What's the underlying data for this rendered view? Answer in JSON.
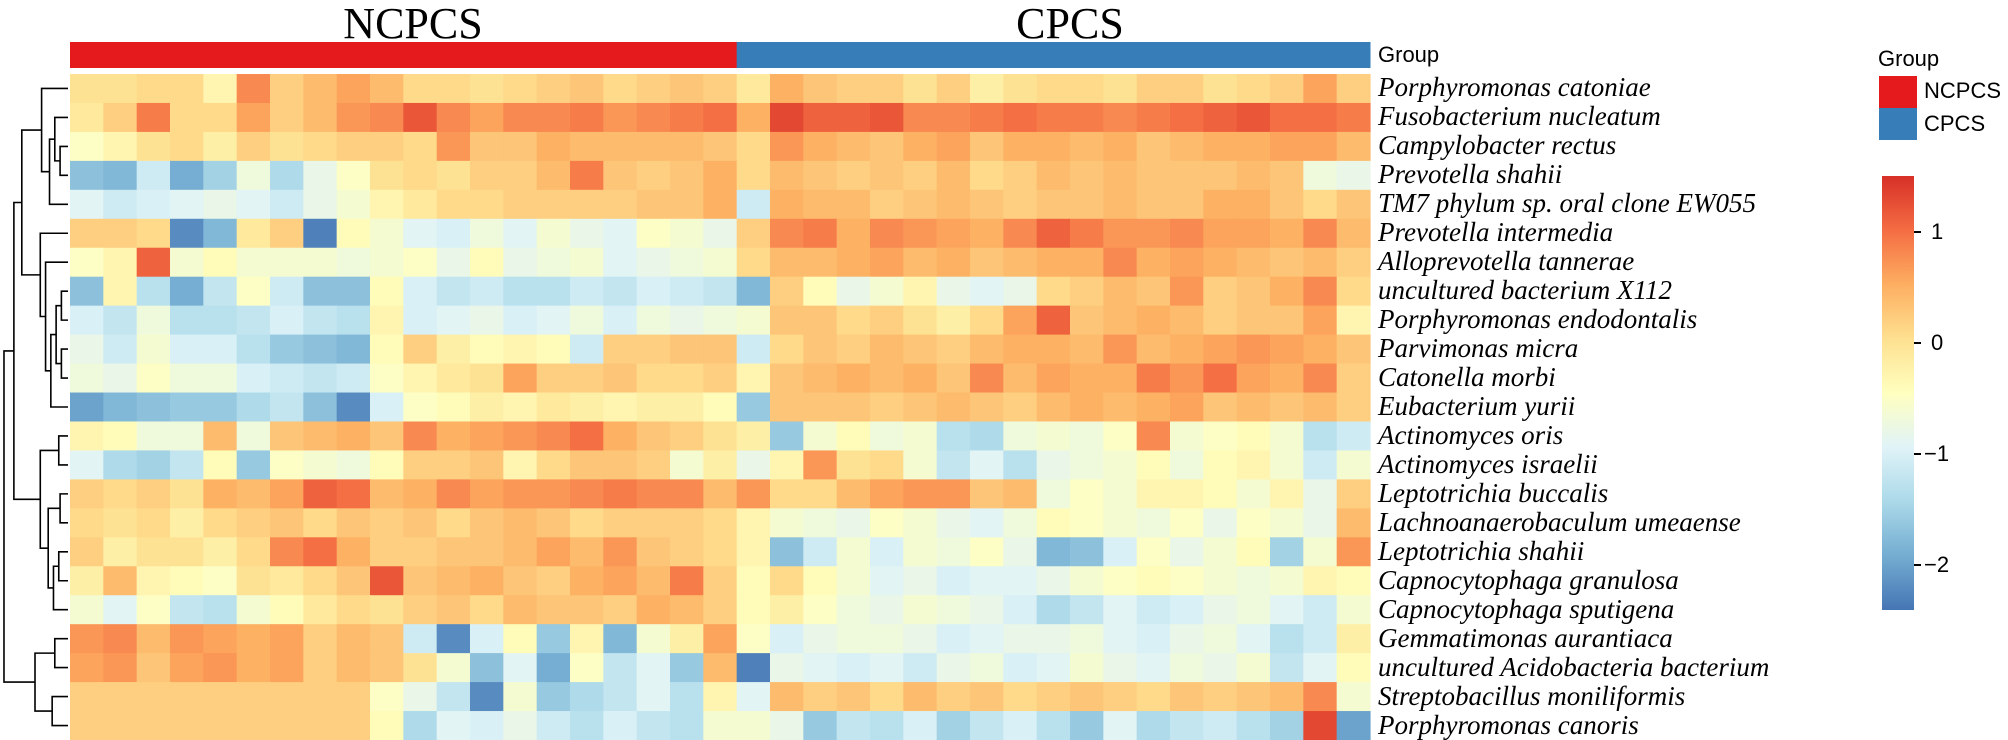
{
  "chart_data": {
    "type": "heatmap",
    "column_groups": [
      {
        "name": "NCPCS",
        "count": 20,
        "color": "#e41a1c"
      },
      {
        "name": "CPCS",
        "count": 19,
        "color": "#377eb8"
      }
    ],
    "group_annotation_label": "Group",
    "rows": [
      "Porphyromonas catoniae",
      "Fusobacterium nucleatum",
      "Campylobacter rectus",
      "Prevotella shahii",
      "TM7 phylum sp. oral clone EW055",
      "Prevotella intermedia",
      "Alloprevotella tannerae",
      "uncultured bacterium X112",
      "Porphyromonas endodontalis",
      "Parvimonas micra",
      "Catonella morbi",
      "Eubacterium yurii",
      "Actinomyces oris",
      "Actinomyces israelii",
      "Leptotrichia buccalis",
      "Lachnoanaerobaculum umeaense",
      "Leptotrichia shahii",
      "Capnocytophaga granulosa",
      "Capnocytophaga sputigena",
      "Gemmatimonas aurantiaca",
      "uncultured Acidobacteria bacterium",
      "Streptobacillus moniliformis",
      "Porphyromonas canoris"
    ],
    "values": [
      [
        0.0,
        0.0,
        0.1,
        0.1,
        -0.3,
        0.8,
        0.2,
        0.4,
        0.6,
        0.4,
        0.1,
        0.1,
        0.0,
        0.1,
        0.2,
        0.3,
        0.1,
        0.2,
        0.3,
        0.2,
        -0.1,
        0.5,
        0.3,
        0.2,
        0.2,
        0.0,
        0.2,
        -0.2,
        0.0,
        0.1,
        0.1,
        0.0,
        0.2,
        0.2,
        0.0,
        0.1,
        0.2,
        0.6,
        0.2
      ],
      [
        -0.1,
        0.2,
        0.9,
        0.1,
        0.1,
        0.6,
        0.2,
        0.4,
        0.7,
        0.8,
        1.2,
        0.8,
        0.6,
        0.8,
        0.8,
        0.9,
        0.7,
        0.8,
        0.9,
        1.0,
        0.5,
        1.3,
        1.1,
        1.1,
        1.2,
        0.8,
        0.8,
        0.9,
        1.0,
        0.9,
        0.9,
        0.8,
        0.9,
        1.0,
        1.1,
        1.2,
        1.0,
        1.0,
        0.9
      ],
      [
        -0.5,
        -0.3,
        0.0,
        0.1,
        -0.2,
        0.2,
        0.0,
        0.1,
        0.2,
        0.2,
        0.1,
        0.7,
        0.3,
        0.3,
        0.5,
        0.4,
        0.4,
        0.4,
        0.4,
        0.3,
        0.1,
        0.7,
        0.5,
        0.4,
        0.3,
        0.5,
        0.6,
        0.3,
        0.5,
        0.5,
        0.4,
        0.5,
        0.3,
        0.4,
        0.5,
        0.5,
        0.6,
        0.6,
        0.4
      ],
      [
        -1.7,
        -1.8,
        -1.1,
        -1.9,
        -1.5,
        -0.7,
        -1.4,
        -0.8,
        -0.5,
        0.0,
        0.1,
        0.0,
        0.2,
        0.2,
        0.4,
        0.9,
        0.3,
        0.2,
        0.3,
        0.5,
        0.1,
        0.4,
        0.3,
        0.2,
        0.3,
        0.2,
        0.4,
        0.1,
        0.2,
        0.4,
        0.3,
        0.4,
        0.3,
        0.3,
        0.3,
        0.4,
        0.3,
        -0.7,
        -0.8
      ],
      [
        -0.9,
        -1.1,
        -1.0,
        -0.9,
        -0.8,
        -0.9,
        -1.1,
        -0.8,
        -0.6,
        -0.3,
        -0.1,
        0.1,
        0.1,
        0.2,
        0.2,
        0.2,
        0.2,
        0.3,
        0.3,
        0.5,
        -1.1,
        0.5,
        0.4,
        0.4,
        0.2,
        0.3,
        0.4,
        0.3,
        0.2,
        0.3,
        0.3,
        0.4,
        0.3,
        0.3,
        0.5,
        0.5,
        0.3,
        0.1,
        0.3
      ],
      [
        0.2,
        0.2,
        0.1,
        -2.2,
        -1.8,
        -0.1,
        0.2,
        -2.3,
        -0.4,
        -0.6,
        -0.9,
        -1.0,
        -0.7,
        -0.9,
        -0.6,
        -0.8,
        -0.9,
        -0.5,
        -0.6,
        -0.8,
        0.2,
        0.8,
        0.9,
        0.5,
        0.8,
        0.7,
        0.6,
        0.5,
        0.8,
        1.1,
        0.9,
        0.7,
        0.7,
        0.8,
        0.6,
        0.6,
        0.5,
        0.8,
        0.4
      ],
      [
        -0.5,
        -0.3,
        1.1,
        -0.6,
        -0.4,
        -0.6,
        -0.6,
        -0.6,
        -0.7,
        -0.6,
        -0.5,
        -0.8,
        -0.4,
        -0.8,
        -0.7,
        -0.6,
        -0.9,
        -0.8,
        -0.7,
        -0.6,
        0.1,
        0.4,
        0.4,
        0.5,
        0.6,
        0.4,
        0.5,
        0.3,
        0.4,
        0.5,
        0.5,
        0.8,
        0.5,
        0.6,
        0.5,
        0.4,
        0.3,
        0.4,
        0.2
      ],
      [
        -1.7,
        -0.3,
        -1.3,
        -1.9,
        -1.2,
        -0.5,
        -1.1,
        -1.7,
        -1.7,
        -0.4,
        -1.0,
        -1.2,
        -1.1,
        -1.3,
        -1.3,
        -1.1,
        -1.2,
        -1.0,
        -1.1,
        -1.2,
        -1.8,
        0.2,
        -0.4,
        -0.8,
        -0.6,
        -0.3,
        -0.8,
        -0.9,
        -0.8,
        0.1,
        0.2,
        0.4,
        0.3,
        0.7,
        0.2,
        0.3,
        0.5,
        0.8,
        0.1
      ],
      [
        -1.0,
        -1.2,
        -0.7,
        -1.3,
        -1.3,
        -1.2,
        -1.0,
        -1.2,
        -1.3,
        -0.3,
        -1.0,
        -0.9,
        -0.8,
        -1.0,
        -0.9,
        -0.7,
        -1.0,
        -0.7,
        -0.8,
        -0.7,
        -0.6,
        0.3,
        0.3,
        0.1,
        0.2,
        0.0,
        -0.2,
        0.1,
        0.6,
        1.1,
        0.3,
        0.4,
        0.5,
        0.4,
        0.2,
        0.3,
        0.3,
        0.6,
        -0.3
      ],
      [
        -0.8,
        -1.1,
        -0.6,
        -1.0,
        -1.0,
        -1.3,
        -1.6,
        -1.7,
        -1.8,
        -0.4,
        0.2,
        -0.2,
        -0.4,
        -0.3,
        -0.4,
        -1.1,
        0.2,
        0.2,
        0.3,
        0.3,
        -1.1,
        0.1,
        0.3,
        0.2,
        0.4,
        0.3,
        0.2,
        0.4,
        0.5,
        0.5,
        0.4,
        0.7,
        0.4,
        0.5,
        0.6,
        0.7,
        0.6,
        0.5,
        0.3
      ],
      [
        -0.7,
        -0.8,
        -0.5,
        -0.7,
        -0.7,
        -1.0,
        -1.1,
        -1.2,
        -1.1,
        -0.5,
        -0.3,
        -0.1,
        0.0,
        0.6,
        0.2,
        0.2,
        0.3,
        0.1,
        0.1,
        0.2,
        -0.3,
        0.3,
        0.4,
        0.5,
        0.4,
        0.5,
        0.3,
        0.8,
        0.4,
        0.6,
        0.5,
        0.5,
        0.9,
        0.7,
        1.0,
        0.6,
        0.5,
        0.8,
        0.2
      ],
      [
        -2.0,
        -1.8,
        -1.7,
        -1.6,
        -1.6,
        -1.4,
        -1.2,
        -1.7,
        -2.2,
        -1.0,
        -0.5,
        -0.4,
        -0.2,
        -0.3,
        -0.1,
        -0.2,
        -0.3,
        -0.2,
        -0.2,
        -0.4,
        -1.6,
        0.3,
        0.3,
        0.3,
        0.2,
        0.3,
        0.4,
        0.3,
        0.2,
        0.4,
        0.5,
        0.4,
        0.5,
        0.6,
        0.3,
        0.4,
        0.3,
        0.4,
        0.2
      ],
      [
        -0.3,
        -0.4,
        -0.7,
        -0.7,
        0.4,
        -0.7,
        0.3,
        0.4,
        0.5,
        0.3,
        0.8,
        0.5,
        0.6,
        0.7,
        0.8,
        1.0,
        0.5,
        0.3,
        0.2,
        0.0,
        -0.2,
        -1.6,
        -0.6,
        -0.4,
        -0.7,
        -0.6,
        -1.3,
        -1.4,
        -0.7,
        -0.6,
        -0.7,
        -0.5,
        0.8,
        -0.6,
        -0.5,
        -0.4,
        -0.6,
        -1.3,
        -1.1
      ],
      [
        -0.9,
        -1.4,
        -1.5,
        -1.2,
        -0.4,
        -1.6,
        -0.5,
        -0.6,
        -0.7,
        -0.4,
        0.2,
        0.2,
        0.3,
        -0.3,
        0.1,
        0.3,
        0.3,
        0.2,
        -0.6,
        -0.2,
        -0.8,
        -0.3,
        0.7,
        0.0,
        0.1,
        -0.6,
        -1.2,
        -0.9,
        -1.3,
        -0.8,
        -0.7,
        -0.6,
        -0.4,
        -0.7,
        -0.4,
        -0.3,
        -0.6,
        -1.1,
        -0.6
      ],
      [
        0.2,
        0.1,
        0.2,
        0.0,
        0.5,
        0.4,
        0.6,
        1.1,
        1.0,
        0.4,
        0.5,
        0.8,
        0.6,
        0.7,
        0.7,
        0.8,
        0.9,
        0.8,
        0.8,
        0.4,
        0.7,
        0.1,
        0.1,
        0.4,
        0.6,
        0.7,
        0.7,
        0.3,
        0.4,
        -0.7,
        -0.5,
        -0.6,
        -0.3,
        -0.3,
        -0.4,
        -0.6,
        -0.3,
        -0.8,
        0.2
      ],
      [
        0.1,
        0.0,
        0.1,
        -0.2,
        0.1,
        0.2,
        0.3,
        0.1,
        0.3,
        0.2,
        0.3,
        0.1,
        0.3,
        0.4,
        0.3,
        0.1,
        0.2,
        0.2,
        0.2,
        0.1,
        -0.3,
        -0.6,
        -0.7,
        -0.8,
        -0.5,
        -0.6,
        -0.8,
        -0.9,
        -0.7,
        -0.4,
        -0.5,
        -0.6,
        -0.7,
        -0.5,
        -0.8,
        -0.5,
        -0.6,
        -0.8,
        0.4
      ],
      [
        0.2,
        -0.2,
        0.0,
        0.0,
        -0.2,
        0.1,
        0.8,
        1.0,
        0.5,
        0.2,
        0.2,
        0.3,
        0.3,
        0.4,
        0.6,
        0.4,
        0.7,
        0.3,
        0.2,
        0.1,
        -0.3,
        -1.7,
        -1.1,
        -0.6,
        -1.0,
        -0.6,
        -0.7,
        -0.5,
        -0.8,
        -1.8,
        -1.7,
        -1.0,
        -0.5,
        -0.8,
        -0.6,
        -0.4,
        -1.5,
        -0.6,
        0.7
      ],
      [
        -0.2,
        0.4,
        -0.3,
        -0.4,
        -0.5,
        0.0,
        -0.1,
        0.1,
        0.3,
        1.2,
        0.3,
        0.4,
        0.5,
        0.3,
        0.2,
        0.5,
        0.6,
        0.4,
        0.9,
        0.2,
        -0.4,
        0.1,
        -0.4,
        -0.6,
        -0.9,
        -0.8,
        -1.0,
        -0.9,
        -0.9,
        -0.8,
        -0.6,
        -0.5,
        -0.4,
        -0.5,
        -0.6,
        -0.7,
        -0.6,
        -0.3,
        -0.4
      ],
      [
        -0.6,
        -0.9,
        -0.5,
        -1.2,
        -1.3,
        -0.6,
        -0.4,
        -0.1,
        0.1,
        0.0,
        0.2,
        0.3,
        0.1,
        0.4,
        0.3,
        0.3,
        0.2,
        0.5,
        0.4,
        0.2,
        -0.4,
        -0.2,
        -0.5,
        -0.7,
        -0.8,
        -0.6,
        -0.7,
        -0.8,
        -1.0,
        -1.4,
        -1.2,
        -0.9,
        -1.1,
        -1.0,
        -0.8,
        -0.7,
        -0.9,
        -1.1,
        -0.6
      ],
      [
        0.7,
        0.8,
        0.4,
        0.7,
        0.6,
        0.5,
        0.6,
        0.2,
        0.4,
        0.3,
        -1.1,
        -2.2,
        -1.0,
        -0.4,
        -1.6,
        -0.3,
        -1.8,
        -0.6,
        -0.2,
        0.6,
        -0.5,
        -1.0,
        -0.8,
        -0.7,
        -0.7,
        -0.8,
        -1.0,
        -0.9,
        -0.8,
        -0.8,
        -0.7,
        -0.9,
        -1.0,
        -0.8,
        -0.7,
        -0.9,
        -1.3,
        -1.1,
        -0.2
      ],
      [
        0.6,
        0.7,
        0.3,
        0.6,
        0.7,
        0.5,
        0.6,
        0.2,
        0.4,
        0.3,
        0.0,
        -0.6,
        -1.7,
        -0.9,
        -1.9,
        -0.5,
        -1.2,
        -0.9,
        -1.6,
        0.4,
        -2.3,
        -0.8,
        -0.9,
        -1.0,
        -0.9,
        -1.1,
        -0.8,
        -0.7,
        -1.0,
        -0.9,
        -0.6,
        -0.8,
        -0.9,
        -0.7,
        -0.8,
        -0.6,
        -1.2,
        -0.9,
        -0.4
      ],
      [
        0.2,
        0.2,
        0.2,
        0.2,
        0.2,
        0.2,
        0.2,
        0.2,
        0.2,
        -0.5,
        -0.8,
        -1.2,
        -2.2,
        -0.6,
        -1.6,
        -1.4,
        -1.2,
        -0.9,
        -1.3,
        -0.3,
        -0.9,
        0.4,
        0.2,
        0.3,
        0.1,
        0.4,
        0.2,
        0.3,
        0.1,
        0.2,
        0.3,
        0.2,
        0.1,
        0.3,
        0.2,
        0.3,
        0.4,
        0.8,
        -0.6
      ],
      [
        0.2,
        0.2,
        0.2,
        0.2,
        0.2,
        0.2,
        0.2,
        0.2,
        0.2,
        -0.4,
        -1.4,
        -0.9,
        -1.0,
        -0.8,
        -1.1,
        -1.3,
        -1.0,
        -1.2,
        -1.3,
        -0.6,
        -0.6,
        -0.8,
        -1.6,
        -1.2,
        -1.3,
        -1.0,
        -1.5,
        -1.2,
        -1.0,
        -1.3,
        -1.6,
        -0.9,
        -1.4,
        -1.2,
        -1.1,
        -1.3,
        -1.5,
        1.3,
        -2.0
      ]
    ],
    "color_scale": {
      "min": -2.4,
      "max": 1.5,
      "stops": [
        "#4575b4",
        "#74add1",
        "#abd9e9",
        "#e0f3f8",
        "#ffffbf",
        "#fee090",
        "#fdae61",
        "#f46d43",
        "#d73027"
      ],
      "ticks": [
        1,
        0,
        -1,
        -2
      ],
      "tick_labels": [
        "1",
        "0",
        "−1",
        "−2"
      ]
    },
    "legend": {
      "group_title": "Group",
      "entries": [
        {
          "label": "NCPCS",
          "color": "#e41a1c"
        },
        {
          "label": "CPCS",
          "color": "#377eb8"
        }
      ]
    },
    "dendrogram": "rows"
  }
}
